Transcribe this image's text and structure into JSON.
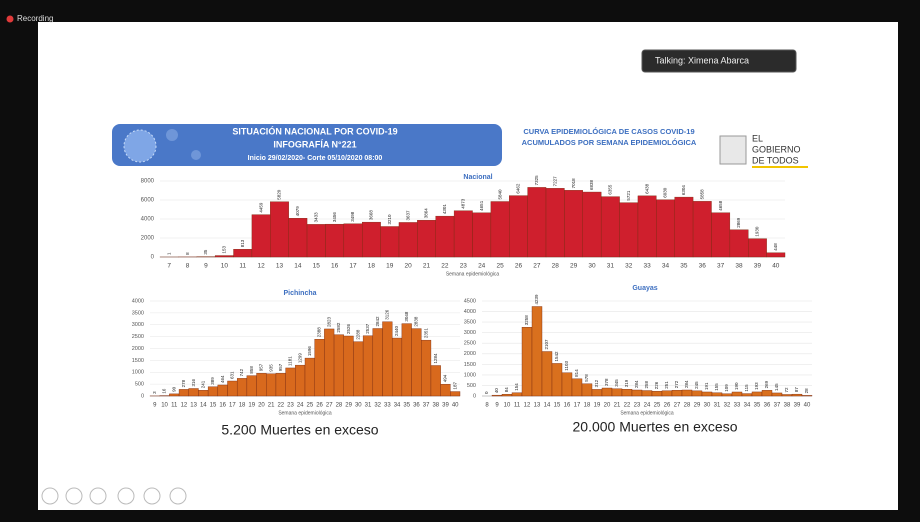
{
  "window": {
    "recording": "Recording",
    "talking": "Talking: Ximena Abarca"
  },
  "slide": {
    "header": {
      "title": "SITUACIÓN NACIONAL POR COVID-19",
      "subtitle": "INFOGRAFÍA N°221",
      "period": "Inicio 29/02/2020- Corte 05/10/2020 08:00"
    },
    "curve_title": [
      "CURVA EPIDEMIOLÓGICA DE CASOS COVID-19",
      "ACUMULADOS POR SEMANA EPIDEMIOLÓGICA"
    ],
    "logo": [
      "EL",
      "GOBIERNO",
      "DE TODOS"
    ],
    "captions": [
      "5.200 Muertes en exceso",
      "20.000 Muertes en exceso"
    ]
  },
  "chart_data": [
    {
      "type": "bar",
      "title": "Nacional",
      "x_label": "Semana epidemiológica",
      "color": "#cf1f2d",
      "categories": [
        "7",
        "8",
        "9",
        "10",
        "11",
        "12",
        "13",
        "14",
        "15",
        "16",
        "17",
        "18",
        "19",
        "20",
        "21",
        "22",
        "23",
        "24",
        "25",
        "26",
        "27",
        "28",
        "29",
        "30",
        "31",
        "32",
        "33",
        "34",
        "35",
        "36",
        "37",
        "38",
        "39",
        "40"
      ],
      "values": [
        1,
        8,
        35,
        153,
        813,
        4459,
        5820,
        4079,
        3433,
        3456,
        3498,
        3668,
        3210,
        3637,
        3864,
        4301,
        4873,
        4651,
        5840,
        6462,
        7325,
        7227,
        7018,
        6838,
        6355,
        5721,
        6438,
        6030,
        6304,
        5858,
        4658,
        2869,
        1930,
        448
      ],
      "ylim": [
        0,
        8000
      ],
      "yticks": [
        0,
        2000,
        4000,
        6000,
        8000
      ]
    },
    {
      "type": "bar",
      "title": "Pichincha",
      "x_label": "Semana epidemiológica",
      "color": "#d8691d",
      "categories": [
        "9",
        "10",
        "11",
        "12",
        "13",
        "14",
        "15",
        "16",
        "17",
        "18",
        "19",
        "20",
        "21",
        "22",
        "23",
        "24",
        "25",
        "26",
        "27",
        "28",
        "29",
        "30",
        "31",
        "32",
        "33",
        "34",
        "35",
        "36",
        "37",
        "38",
        "39",
        "40"
      ],
      "values": [
        3,
        16,
        90,
        278,
        316,
        241,
        389,
        464,
        631,
        742,
        858,
        957,
        935,
        957,
        1181,
        1299,
        1596,
        2388,
        2823,
        2582,
        2526,
        2288,
        2537,
        2842,
        3126,
        2440,
        3048,
        2838,
        2351,
        1284,
        494,
        187
      ],
      "ylim": [
        0,
        4000
      ],
      "yticks": [
        0,
        500,
        1000,
        1500,
        2000,
        2500,
        3000,
        3500,
        4000
      ]
    },
    {
      "type": "bar",
      "title": "Guayas",
      "x_label": "Semana epidemiológica",
      "color": "#d9701e",
      "categories": [
        "8",
        "9",
        "10",
        "11",
        "12",
        "13",
        "14",
        "15",
        "16",
        "17",
        "18",
        "19",
        "20",
        "21",
        "22",
        "23",
        "24",
        "25",
        "26",
        "27",
        "28",
        "29",
        "30",
        "31",
        "32",
        "33",
        "34",
        "35",
        "36",
        "37",
        "38",
        "39",
        "40"
      ],
      "values": [
        0,
        40,
        84,
        154,
        3258,
        4239,
        2107,
        1542,
        1103,
        814,
        578,
        312,
        378,
        345,
        319,
        284,
        258,
        226,
        251,
        272,
        284,
        245,
        191,
        155,
        109,
        190,
        115,
        193,
        269,
        145,
        72,
        87,
        28
      ],
      "ylim": [
        0,
        4500
      ],
      "yticks": [
        0,
        500,
        1000,
        1500,
        2000,
        2500,
        3000,
        3500,
        4000,
        4500
      ]
    }
  ]
}
